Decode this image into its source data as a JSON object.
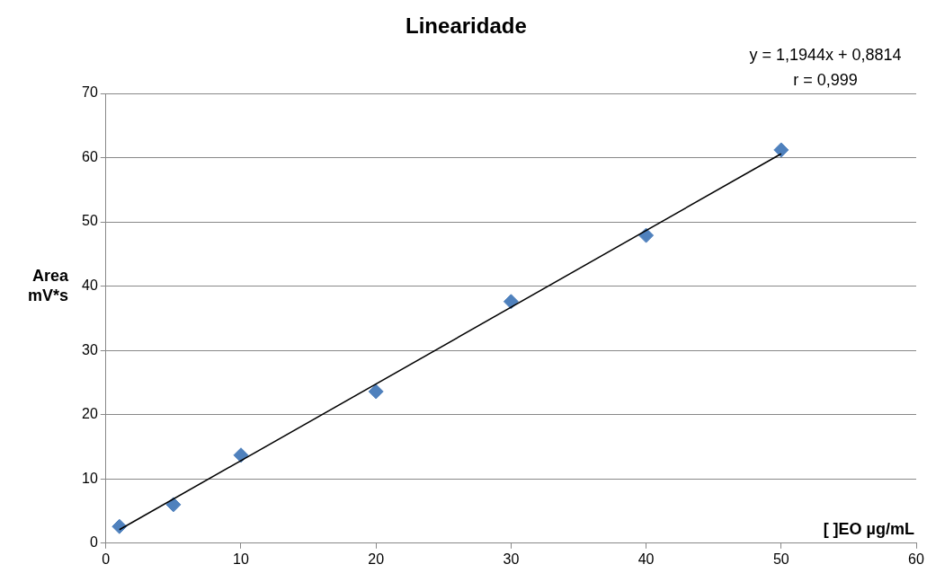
{
  "chart_data": {
    "type": "scatter",
    "title": "Linearidade",
    "xlabel": "[ ]EO µg/mL",
    "ylabel": "Area mV*s",
    "annotations": [
      "y = 1,1944x + 0,8814",
      "r = 0,999"
    ],
    "x": [
      1,
      5,
      10,
      20,
      30,
      40,
      50
    ],
    "series": [
      {
        "type": "scatter",
        "color": "#4f81bd",
        "marker": "diamond",
        "values": [
          2.6,
          6.0,
          13.7,
          23.6,
          37.6,
          47.9,
          61.2
        ]
      },
      {
        "type": "line",
        "color": "#000000",
        "marker": "none",
        "line_style": "solid",
        "x": [
          1,
          50
        ],
        "values": [
          2.1,
          60.6
        ]
      }
    ],
    "xlim": [
      0,
      60
    ],
    "xticks": [
      0,
      10,
      20,
      30,
      40,
      50,
      60
    ],
    "ylim": [
      0,
      70
    ],
    "yticks": [
      0,
      10,
      20,
      30,
      40,
      50,
      60,
      70
    ],
    "grid": "y",
    "legend": false
  }
}
